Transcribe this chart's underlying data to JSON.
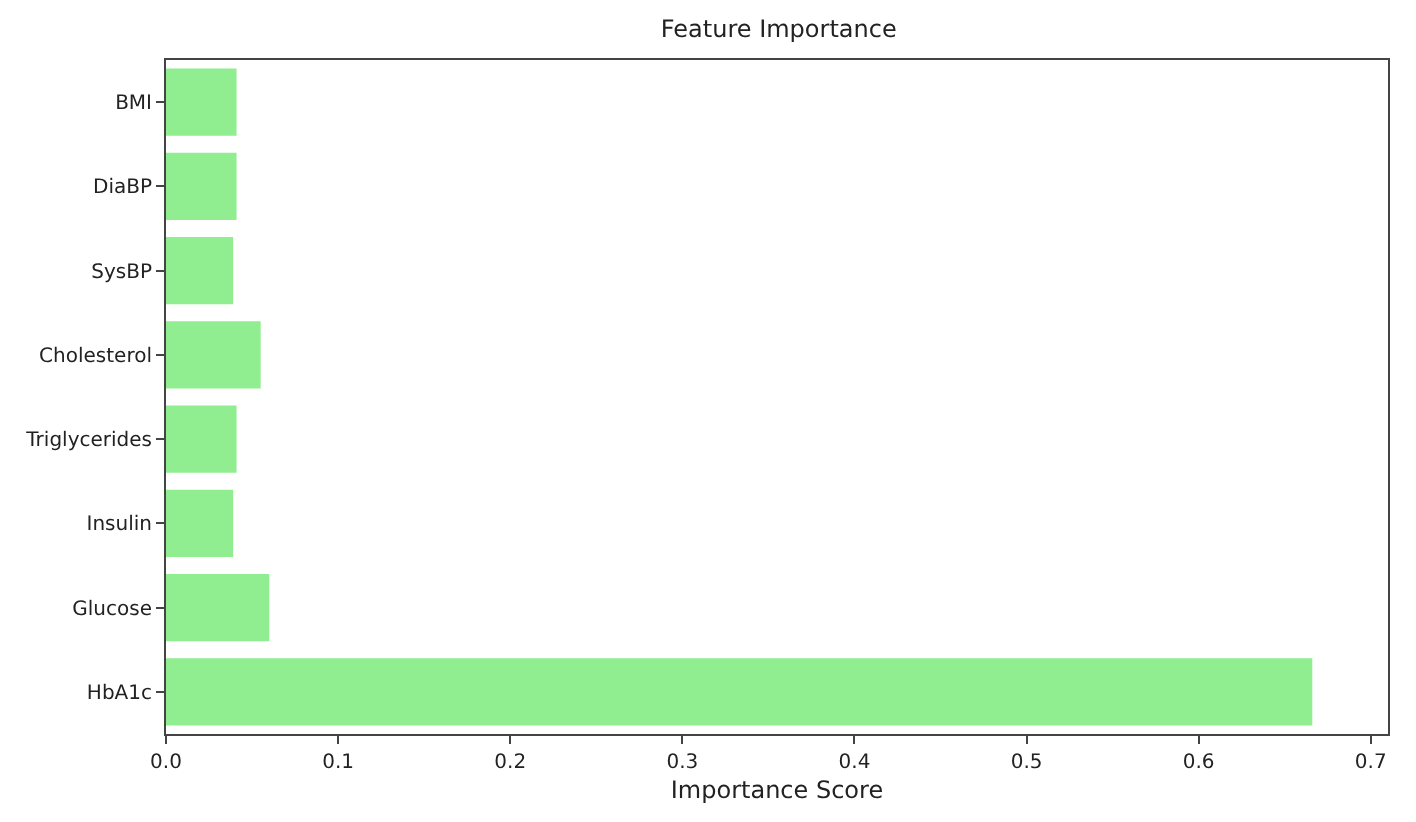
{
  "chart_data": {
    "type": "bar",
    "orientation": "horizontal",
    "title": "Feature Importance",
    "xlabel": "Importance Score",
    "categories": [
      "BMI",
      "DiaBP",
      "SysBP",
      "Cholesterol",
      "Triglycerides",
      "Insulin",
      "Glucose",
      "HbA1c"
    ],
    "values": [
      0.041,
      0.041,
      0.039,
      0.055,
      0.041,
      0.039,
      0.06,
      0.666
    ],
    "color": "#90ee90",
    "xlim": [
      0,
      0.71
    ],
    "xticks": [
      {
        "value": 0,
        "label": "0.0"
      },
      0.1,
      0.2,
      0.3,
      0.4,
      0.5,
      0.6,
      0.7
    ],
    "grid": false,
    "legend": false
  }
}
